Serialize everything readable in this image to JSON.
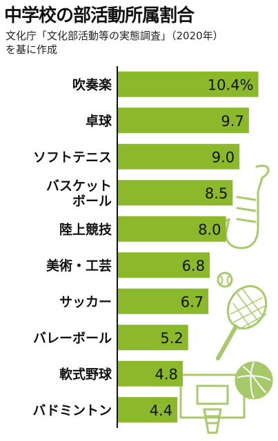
{
  "title": "中学校の部活動所属割合",
  "source": {
    "line1": "文化庁「文化部活動等の実態調査」（2020年）",
    "line2": "を基に作成"
  },
  "colors": {
    "bar": "#8cb82c",
    "axis": "#111111",
    "decoration": "#a8c96a"
  },
  "decorations": [
    "saxophone-icon",
    "tennis-racket-icon",
    "tennis-ball-icon",
    "basketball-hoop-icon",
    "basketball-icon"
  ],
  "chart_data": {
    "type": "bar",
    "orientation": "horizontal",
    "unit_suffix": "%",
    "categories": [
      [
        "吹奏楽"
      ],
      [
        "卓球"
      ],
      [
        "ソフトテニス"
      ],
      [
        "バスケット",
        "ボール"
      ],
      [
        "陸上競技"
      ],
      [
        "美術・工芸"
      ],
      [
        "サッカー"
      ],
      [
        "バレーボール"
      ],
      [
        "軟式野球"
      ],
      [
        "バドミントン"
      ]
    ],
    "values": [
      10.4,
      9.7,
      9.0,
      8.5,
      8.0,
      6.8,
      6.7,
      5.2,
      4.8,
      4.4
    ],
    "value_labels": [
      "10.4%",
      "9.7",
      "9.0",
      "8.5",
      "8.0",
      "6.8",
      "6.7",
      "5.2",
      "4.8",
      "4.4"
    ],
    "xlim": [
      0,
      11.6
    ],
    "grid": false,
    "legend": "none"
  }
}
